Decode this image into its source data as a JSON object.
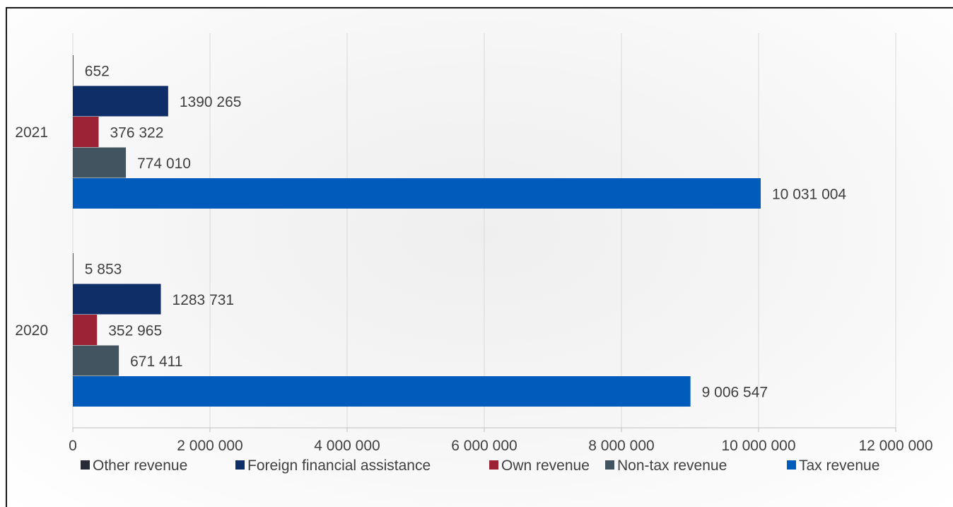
{
  "chart_data": {
    "type": "bar",
    "orientation": "horizontal",
    "categories": [
      "2021",
      "2020"
    ],
    "xlim": [
      0,
      12000000
    ],
    "x_ticks": [
      0,
      2000000,
      4000000,
      6000000,
      8000000,
      10000000,
      12000000
    ],
    "x_tick_labels": [
      "0",
      "2 000 000",
      "4 000 000",
      "6 000 000",
      "8 000 000",
      "10 000 000",
      "12 000 000"
    ],
    "grid": "vertical",
    "legend_position": "bottom",
    "series": [
      {
        "name": "Other revenue",
        "color": "#262b35",
        "values": [
          652,
          5853
        ],
        "labels": [
          "652",
          "5 853"
        ]
      },
      {
        "name": "Foreign financial assistance",
        "color": "#0f2d66",
        "values": [
          1390265,
          1283731
        ],
        "labels": [
          "1390 265",
          "1283 731"
        ]
      },
      {
        "name": "Own revenue",
        "color": "#9b2335",
        "values": [
          376322,
          352965
        ],
        "labels": [
          "376 322",
          "352 965"
        ]
      },
      {
        "name": "Non-tax revenue",
        "color": "#435461",
        "values": [
          774010,
          671411
        ],
        "labels": [
          "774 010",
          "671 411"
        ]
      },
      {
        "name": "Tax revenue",
        "color": "#005bbb",
        "values": [
          10031004,
          9006547
        ],
        "labels": [
          "10 031 004",
          "9 006 547"
        ]
      }
    ]
  }
}
